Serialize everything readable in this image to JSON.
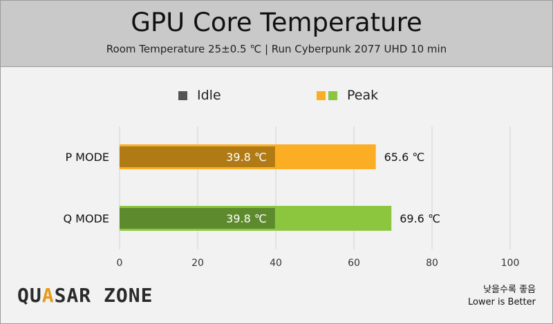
{
  "header": {
    "title": "GPU Core Temperature",
    "subtitle": "Room Temperature 25±0.5 ℃  |  Run Cyberpunk 2077 UHD 10 min"
  },
  "legend": {
    "idle_label": "Idle",
    "peak_label": "Peak"
  },
  "colors": {
    "idle_p": "#b07a14",
    "idle_q": "#5e8a2e",
    "peak_p": "#fbae24",
    "peak_q": "#8cc63f",
    "legend_idle": "#555555"
  },
  "footer": {
    "logo_part1": "QU",
    "logo_accent": "A",
    "logo_part2": "SAR ZONE",
    "note_ko": "낮을수록 좋음",
    "note_en": "Lower is Better"
  },
  "chart_data": {
    "type": "bar",
    "orientation": "horizontal",
    "title": "GPU Core Temperature",
    "subtitle": "Room Temperature 25±0.5 ℃  |  Run Cyberpunk 2077 UHD 10 min",
    "categories": [
      "P MODE",
      "Q MODE"
    ],
    "series": [
      {
        "name": "Idle",
        "values": [
          39.8,
          39.8
        ],
        "labels": [
          "39.8 ℃",
          "39.8 ℃"
        ]
      },
      {
        "name": "Peak",
        "values": [
          65.6,
          69.6
        ],
        "labels": [
          "65.6 ℃",
          "69.6 ℃"
        ]
      }
    ],
    "xlim": [
      0,
      100
    ],
    "xticks": [
      0,
      20,
      40,
      60,
      80,
      100
    ],
    "grid": true,
    "legend_position": "top"
  }
}
